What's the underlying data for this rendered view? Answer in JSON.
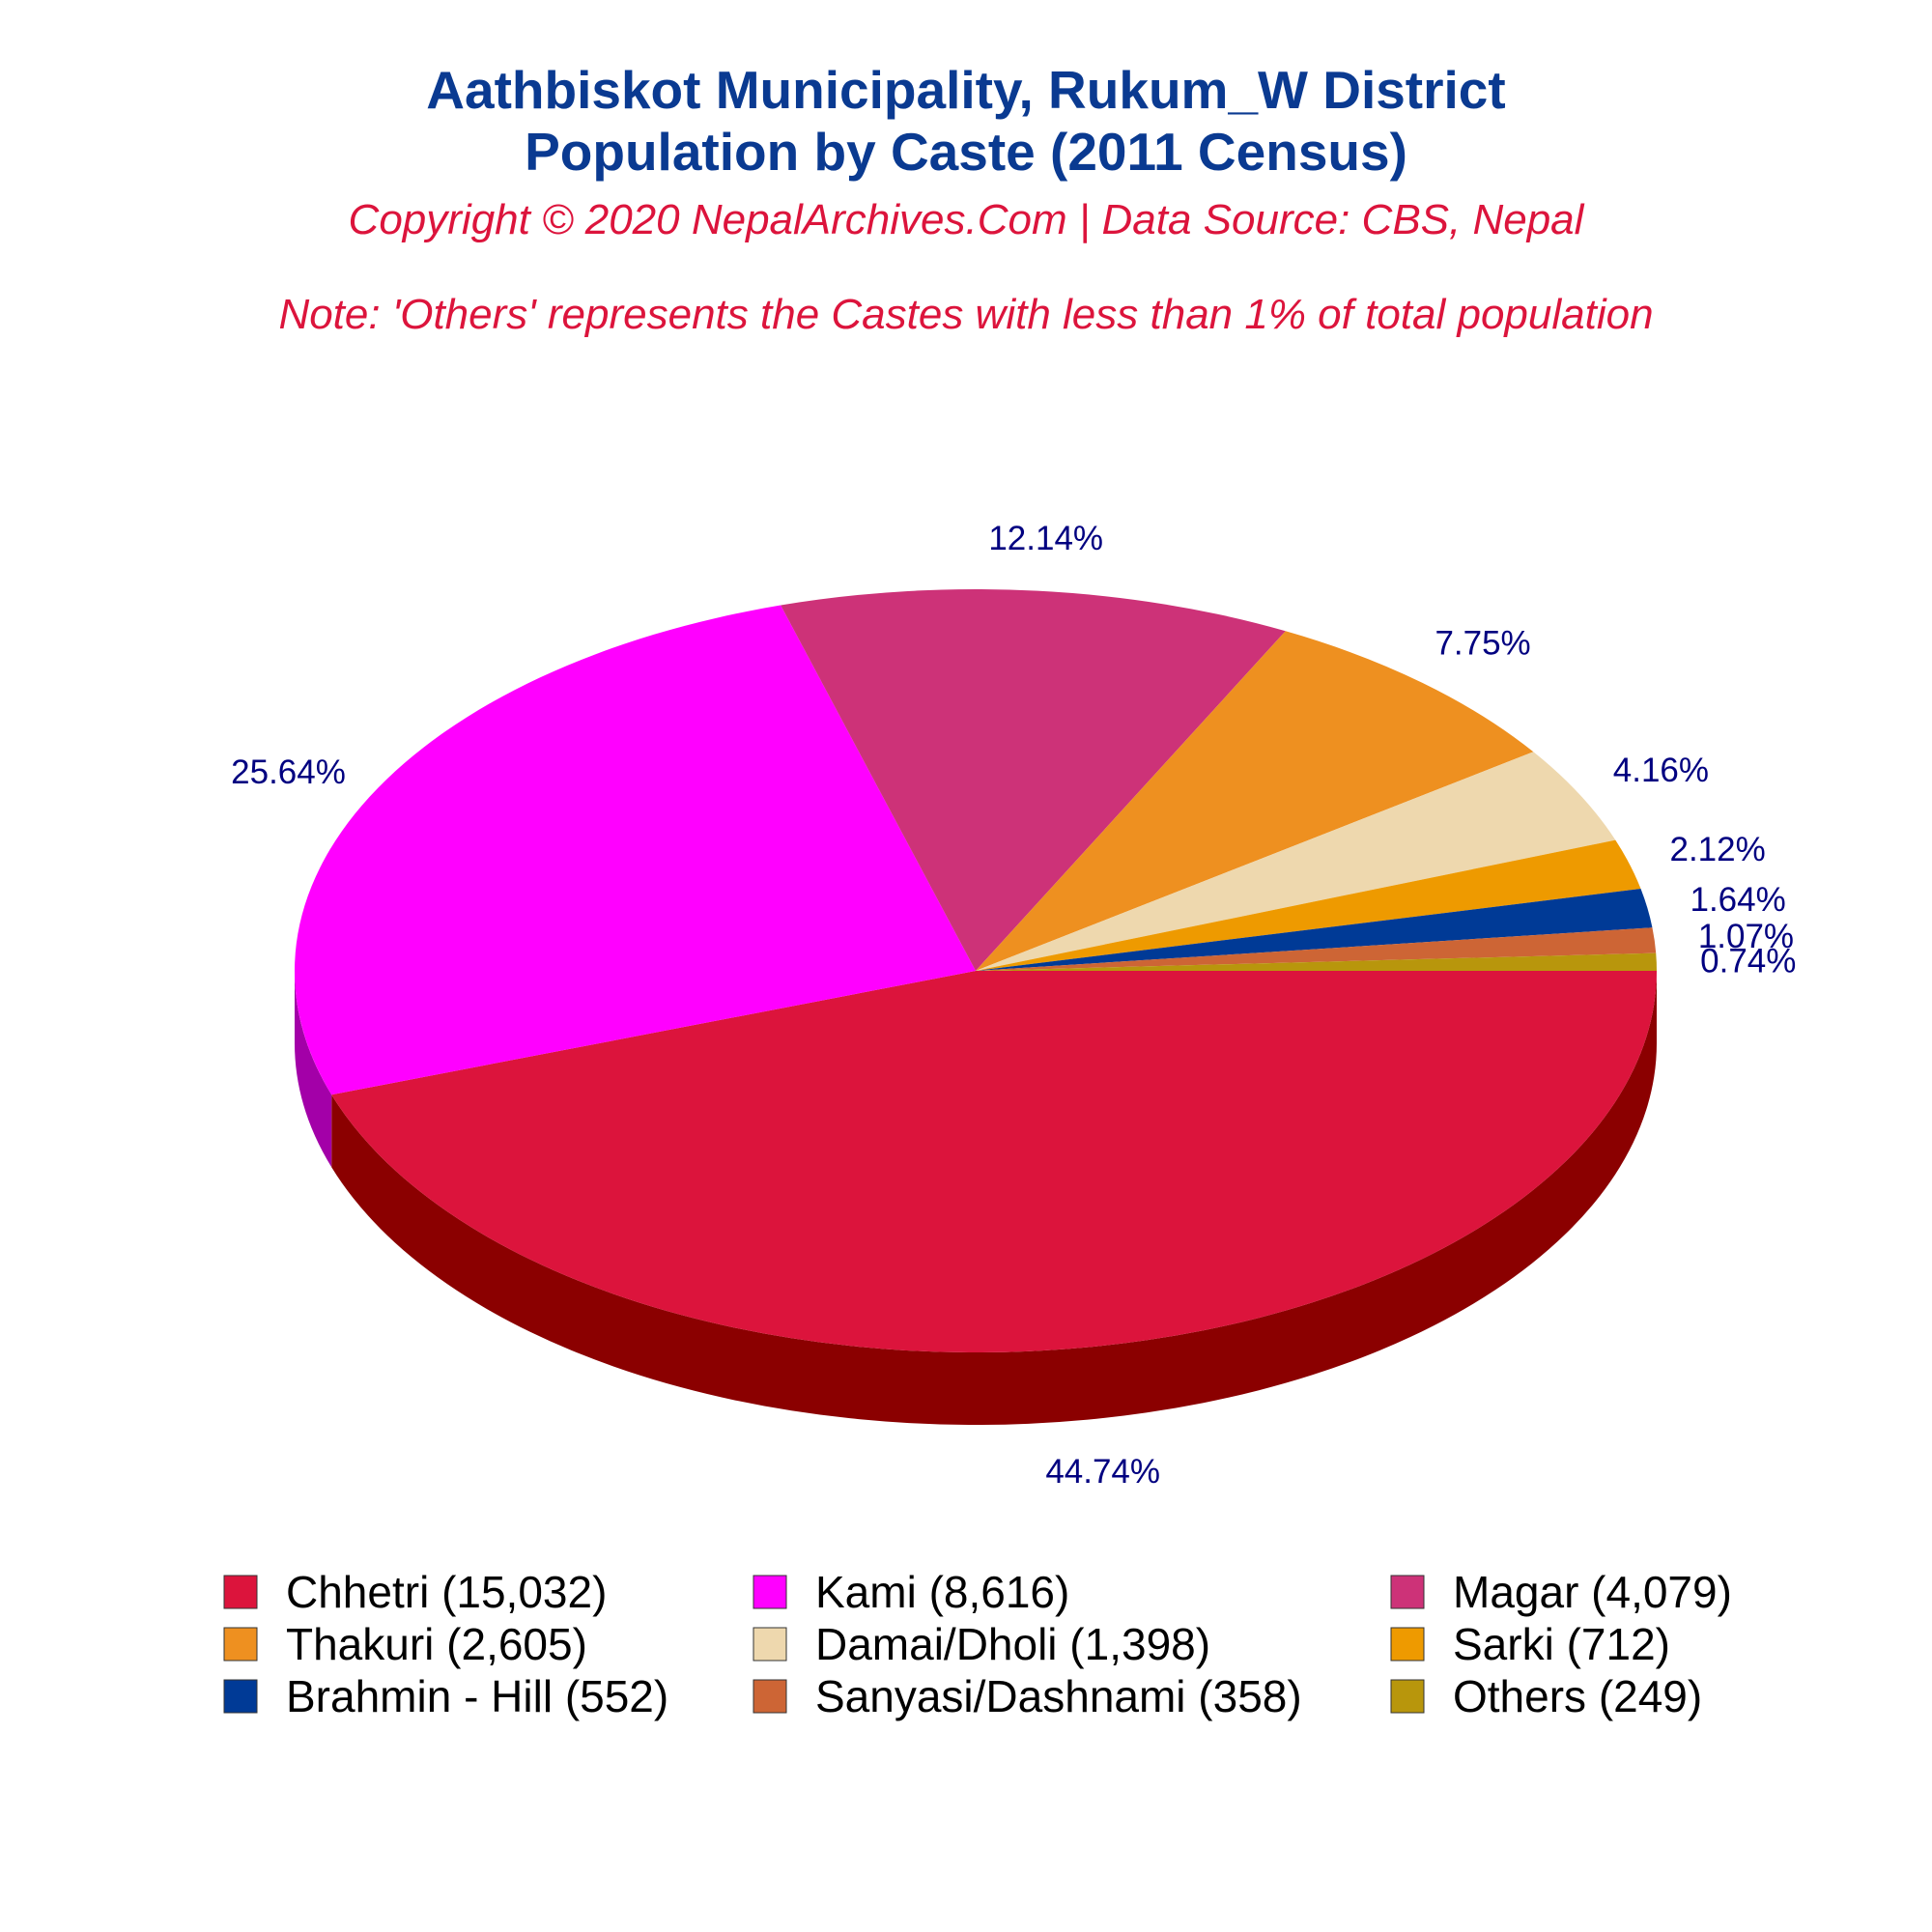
{
  "chart_data": {
    "type": "pie",
    "title": "Aathbiskot Municipality, Rukum_W District",
    "title_line2": "Population by Caste (2011 Census)",
    "subtitle": "Copyright © 2020 NepalArchives.Com | Data Source: CBS, Nepal",
    "note": "Note: 'Others' represents the Castes with less than 1% of total population",
    "style": "3d",
    "legend_placement": "bottom",
    "slices": [
      {
        "label": "Chhetri (15,032)",
        "value": 15032,
        "percent_label": "44.74%",
        "color": "#dc143c",
        "side_color": "#8b0000"
      },
      {
        "label": "Kami (8,616)",
        "value": 8616,
        "percent_label": "25.64%",
        "color": "#ff00ff",
        "side_color": "#a300a8"
      },
      {
        "label": "Magar (4,079)",
        "value": 4079,
        "percent_label": "12.14%",
        "color": "#cd3278",
        "side_color": "#6e0022"
      },
      {
        "label": "Thakuri (2,605)",
        "value": 2605,
        "percent_label": "7.75%",
        "color": "#ee9020",
        "side_color": "#8b3000"
      },
      {
        "label": "Damai/Dholi (1,398)",
        "value": 1398,
        "percent_label": "4.16%",
        "color": "#eed8ae",
        "side_color": "#b8a078"
      },
      {
        "label": "Sarki (712)",
        "value": 712,
        "percent_label": "2.12%",
        "color": "#ee9a00",
        "side_color": "#a06000"
      },
      {
        "label": "Brahmin - Hill (552)",
        "value": 552,
        "percent_label": "1.64%",
        "color": "#003a96",
        "side_color": "#001a55"
      },
      {
        "label": "Sanyasi/Dashnami (358)",
        "value": 358,
        "percent_label": "1.07%",
        "color": "#cd6535",
        "side_color": "#803a18"
      },
      {
        "label": "Others (249)",
        "value": 249,
        "percent_label": "0.74%",
        "color": "#b8960c",
        "side_color": "#7a6200"
      }
    ]
  }
}
